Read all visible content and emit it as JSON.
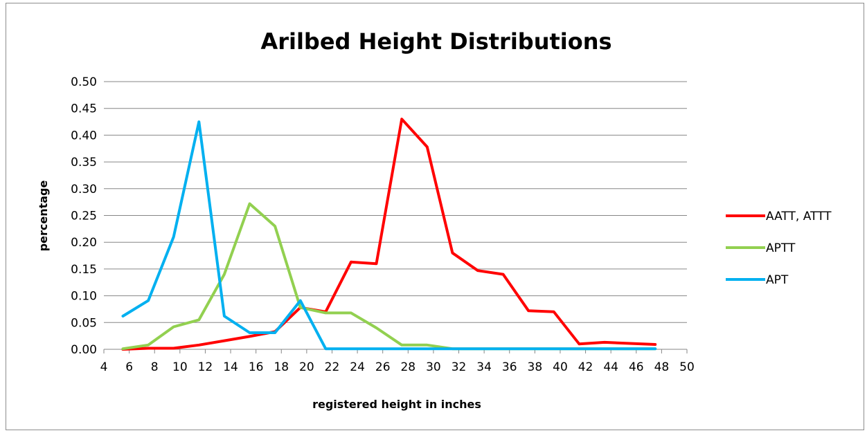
{
  "chart_data": {
    "type": "line",
    "title": "Arilbed Height Distributions",
    "xlabel": "registered height in inches",
    "ylabel": "percentage",
    "xlim": [
      4,
      50
    ],
    "ylim": [
      0,
      0.5
    ],
    "x_ticks": [
      "4",
      "6",
      "8",
      "10",
      "12",
      "14",
      "16",
      "18",
      "20",
      "22",
      "24",
      "26",
      "28",
      "30",
      "32",
      "34",
      "36",
      "38",
      "40",
      "42",
      "44",
      "46",
      "48",
      "50"
    ],
    "y_ticks": [
      "0.00",
      "0.05",
      "0.10",
      "0.15",
      "0.20",
      "0.25",
      "0.30",
      "0.35",
      "0.40",
      "0.45",
      "0.50"
    ],
    "grid": "horizontal",
    "legend_position": "right",
    "series": [
      {
        "name": "AATT, ATTT",
        "color": "#ff0000",
        "x": [
          5.5,
          7.5,
          9.5,
          11.5,
          13.5,
          15.5,
          17.5,
          19.5,
          21.5,
          23.5,
          25.5,
          27.5,
          29.5,
          31.5,
          33.5,
          35.5,
          37.5,
          39.5,
          41.5,
          43.5,
          45.5,
          47.5
        ],
        "y": [
          0.0,
          0.002,
          0.002,
          0.008,
          0.016,
          0.024,
          0.033,
          0.078,
          0.07,
          0.163,
          0.16,
          0.43,
          0.378,
          0.18,
          0.147,
          0.14,
          0.072,
          0.07,
          0.01,
          0.013,
          0.011,
          0.009
        ]
      },
      {
        "name": "APTT",
        "color": "#92d050",
        "x": [
          5.5,
          7.5,
          9.5,
          11.5,
          13.5,
          15.5,
          17.5,
          19.5,
          21.5,
          23.5,
          25.5,
          27.5,
          29.5,
          31.5,
          33.5,
          35.5,
          37.5,
          39.5,
          41.5,
          43.5,
          45.5,
          47.5
        ],
        "y": [
          0.001,
          0.008,
          0.042,
          0.055,
          0.14,
          0.272,
          0.23,
          0.078,
          0.068,
          0.068,
          0.04,
          0.008,
          0.008,
          0.001,
          0.001,
          0.001,
          0.001,
          0.001,
          0.001,
          0.001,
          0.001,
          0.001
        ]
      },
      {
        "name": "APT",
        "color": "#00b0f0",
        "x": [
          5.5,
          7.5,
          9.5,
          11.5,
          13.5,
          15.5,
          17.5,
          19.5,
          21.5,
          23.5,
          25.5,
          27.5,
          29.5,
          31.5,
          33.5,
          35.5,
          37.5,
          39.5,
          41.5,
          43.5,
          45.5,
          47.5
        ],
        "y": [
          0.062,
          0.091,
          0.21,
          0.425,
          0.062,
          0.031,
          0.031,
          0.091,
          0.001,
          0.001,
          0.001,
          0.001,
          0.001,
          0.001,
          0.001,
          0.001,
          0.001,
          0.001,
          0.001,
          0.001,
          0.001,
          0.001
        ]
      }
    ]
  }
}
